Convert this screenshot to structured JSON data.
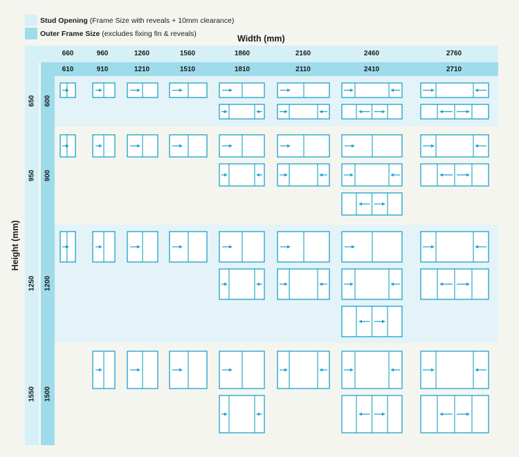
{
  "legend": [
    {
      "name_bold": "Stud Opening",
      "name_rest": " (Frame Size with reveals + 10mm clearance)",
      "color": "#d6f0f7"
    },
    {
      "name_bold": "Outer Frame Size",
      "name_rest": " (excludes fixing fin & reveals)",
      "color": "#9fdceb"
    }
  ],
  "width_title": "Width (mm)",
  "height_title": "Height (mm)",
  "stud_widths": [
    "660",
    "960",
    "1260",
    "1560",
    "1860",
    "2160",
    "2460",
    "2760"
  ],
  "frame_widths": [
    "610",
    "910",
    "1210",
    "1510",
    "1810",
    "2110",
    "2410",
    "2710"
  ],
  "stud_heights": [
    "650",
    "950",
    "1250",
    "1550"
  ],
  "frame_heights": [
    "600",
    "900",
    "1200",
    "1500"
  ],
  "colors": {
    "stroke": "#1aa0c8",
    "stud_band": "#d6f0f7",
    "frame_band": "#9fdceb",
    "row_tint": "#e3f3f8",
    "background": "#f5f5f0",
    "window_fill": "#ffffff"
  },
  "window_types": {
    "S1": "single pane with sliding arrow",
    "S2": "two-pane slider, sash on left sliding right",
    "T3": "three-pane, outer sashes slide toward center",
    "T4": "four-pane, center sashes slide outward"
  },
  "grid": [
    [
      [
        "S1"
      ],
      [
        "S2"
      ],
      [
        "S2"
      ],
      [
        "S2"
      ],
      [
        "S2",
        "T3"
      ],
      [
        "S2",
        "T3"
      ],
      [
        "T3",
        "T4"
      ],
      [
        "T3",
        "T4"
      ]
    ],
    [
      [
        "S1"
      ],
      [
        "S2"
      ],
      [
        "S2"
      ],
      [
        "S2"
      ],
      [
        "S2",
        "T3"
      ],
      [
        "S2",
        "T3"
      ],
      [
        "S2",
        "T3",
        "T4"
      ],
      [
        "T3",
        "T4"
      ]
    ],
    [
      [
        "S1"
      ],
      [
        "S2"
      ],
      [
        "S2"
      ],
      [
        "S2"
      ],
      [
        "S2",
        "T3"
      ],
      [
        "S2",
        "T3"
      ],
      [
        "S2",
        "T3",
        "T4"
      ],
      [
        "T3",
        "T4"
      ]
    ],
    [
      [],
      [
        "S2"
      ],
      [
        "S2"
      ],
      [
        "S2"
      ],
      [
        "S2",
        "T3"
      ],
      [
        "T3"
      ],
      [
        "T3",
        "T4"
      ],
      [
        "T3",
        "T4"
      ]
    ]
  ]
}
